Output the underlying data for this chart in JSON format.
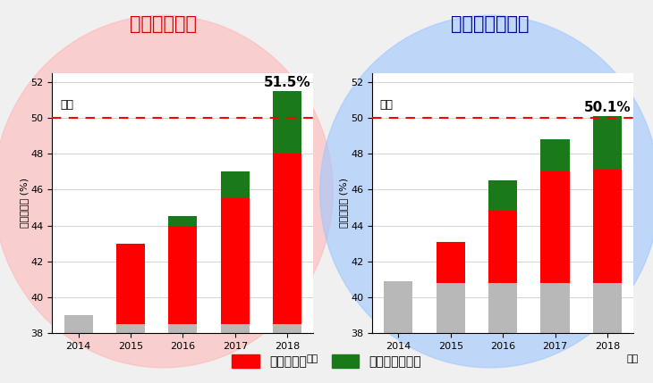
{
  "years": [
    2014,
    2015,
    2016,
    2017,
    2018
  ],
  "gasoline": {
    "title": "ガソリン燃焼",
    "title_color": "#cc0000",
    "circle_color_rgba": [
      1.0,
      0.72,
      0.72,
      0.6
    ],
    "gray_tops": [
      39.0,
      38.5,
      38.5,
      38.5,
      38.5
    ],
    "red_tops": [
      39.0,
      43.0,
      44.0,
      45.5,
      48.0
    ],
    "green_tops": [
      39.0,
      43.0,
      44.5,
      47.0,
      51.5
    ],
    "peak_label": "51.5%",
    "target_line": 50.0
  },
  "diesel": {
    "title": "ディーゼル燃焼",
    "title_color": "#000099",
    "circle_color_rgba": [
      0.62,
      0.78,
      1.0,
      0.6
    ],
    "gray_tops": [
      40.9,
      40.8,
      40.8,
      40.8,
      40.8
    ],
    "red_tops": [
      40.9,
      43.1,
      44.8,
      47.0,
      47.1
    ],
    "green_tops": [
      40.9,
      43.1,
      46.5,
      48.8,
      50.1
    ],
    "peak_label": "50.1%",
    "target_line": 50.0
  },
  "ymin": 38,
  "ylim": [
    38,
    52.5
  ],
  "yticks": [
    38,
    40,
    42,
    44,
    46,
    48,
    50,
    52
  ],
  "ylabel": "正味熱効率 (%)",
  "xlabel": "年度",
  "target_label": "目標",
  "red_color": "#ff0000",
  "green_color": "#1a7a1a",
  "gray_color": "#b8b8b8",
  "legend_labels": [
    "燃焼による",
    "損失低減による"
  ],
  "bg_color": "#f0f0f0"
}
